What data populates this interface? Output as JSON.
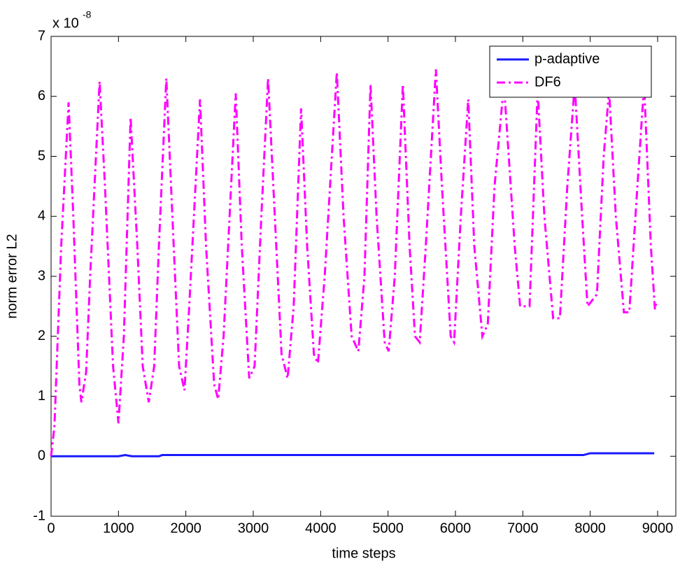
{
  "chart_data": {
    "type": "line",
    "xlabel": "time steps",
    "ylabel": "norm error L2",
    "y_multiplier": {
      "base": "x 10",
      "exponent": "-8"
    },
    "xlim": [
      0,
      9270
    ],
    "ylim": [
      -1,
      7
    ],
    "xticks": [
      0,
      1000,
      2000,
      3000,
      4000,
      5000,
      6000,
      7000,
      8000,
      9000
    ],
    "yticks": [
      -1,
      0,
      1,
      2,
      3,
      4,
      5,
      6,
      7
    ],
    "legend": "upper right",
    "series": [
      {
        "name": "p-adaptive",
        "color": "#1a1aff",
        "dash": "solid",
        "x": [
          0,
          1000,
          1100,
          1200,
          1600,
          1650,
          7900,
          8000,
          8950
        ],
        "values": [
          0,
          0,
          0.02,
          0,
          0,
          0.02,
          0.02,
          0.05,
          0.05
        ]
      },
      {
        "name": "DF6",
        "color": "#ff00ff",
        "dash": "dashdot",
        "x": [
          0,
          50,
          150,
          260,
          330,
          420,
          450,
          520,
          580,
          720,
          800,
          920,
          1000,
          1080,
          1180,
          1280,
          1360,
          1450,
          1530,
          1600,
          1710,
          1820,
          1900,
          1980,
          2050,
          2210,
          2300,
          2420,
          2480,
          2560,
          2740,
          2830,
          2940,
          3020,
          3120,
          3220,
          3320,
          3420,
          3510,
          3600,
          3710,
          3800,
          3900,
          3960,
          4060,
          4240,
          4340,
          4460,
          4560,
          4650,
          4740,
          4830,
          4950,
          5010,
          5100,
          5220,
          5320,
          5400,
          5470,
          5560,
          5710,
          5800,
          5930,
          5980,
          6080,
          6190,
          6280,
          6400,
          6480,
          6580,
          6720,
          6880,
          6960,
          7100,
          7220,
          7320,
          7450,
          7550,
          7660,
          7770,
          7880,
          7960,
          8100,
          8200,
          8280,
          8380,
          8500,
          8580,
          8700,
          8800,
          8900,
          8960,
          8990
        ],
        "values": [
          0,
          0.5,
          3.5,
          5.9,
          4,
          1.2,
          0.9,
          1.4,
          3,
          6.25,
          4.5,
          1.5,
          0.55,
          2,
          5.65,
          3.5,
          1.5,
          0.9,
          1.5,
          3.5,
          6.3,
          3.5,
          1.5,
          1.1,
          2.5,
          5.95,
          3.5,
          1.2,
          0.95,
          2,
          6.05,
          3.5,
          1.3,
          1.5,
          4,
          6.3,
          4,
          1.7,
          1.3,
          2.5,
          5.8,
          3.5,
          1.7,
          1.55,
          3,
          6.4,
          4,
          2,
          1.75,
          3,
          6.2,
          4,
          1.9,
          1.75,
          3,
          6.2,
          3.5,
          2,
          1.9,
          3.5,
          6.45,
          4.5,
          2,
          1.9,
          4,
          5.95,
          3.5,
          2,
          2.2,
          4.5,
          6.2,
          3.5,
          2.5,
          2.5,
          6.1,
          4,
          2.3,
          2.3,
          4.5,
          6.2,
          4,
          2.5,
          2.7,
          5,
          6.1,
          4,
          2.4,
          2.4,
          4.5,
          6.2,
          3.5,
          2.45,
          2.6
        ]
      }
    ]
  }
}
